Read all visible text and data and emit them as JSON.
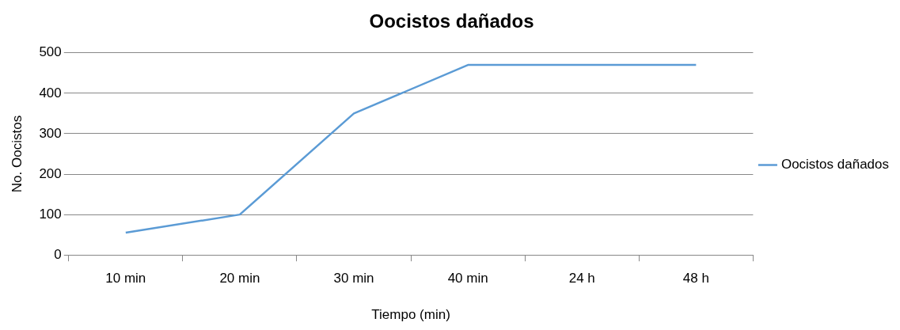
{
  "chart_data": {
    "type": "line",
    "title": "Oocistos dañados",
    "xlabel": "Tiempo (min)",
    "ylabel": "No. Oocistos",
    "categories": [
      "10 min",
      "20 min",
      "30 min",
      "40 min",
      "24 h",
      "48 h"
    ],
    "series": [
      {
        "name": "Oocistos dañados",
        "color": "#5b9bd5",
        "values": [
          55,
          100,
          350,
          470,
          470,
          470
        ]
      }
    ],
    "ylim": [
      0,
      500
    ],
    "yticks": [
      0,
      100,
      200,
      300,
      400,
      500
    ],
    "grid": "y",
    "legend": "right",
    "marker": "none",
    "line_style": "solid"
  }
}
